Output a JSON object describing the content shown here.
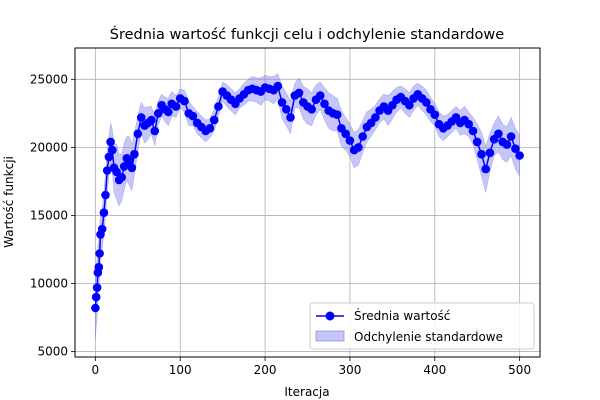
{
  "chart_data": {
    "type": "line",
    "title": "Średnia wartość funkcji celu i odchylenie standardowe",
    "xlabel": "Iteracja",
    "ylabel": "Wartość funkcji",
    "xlim": [
      -24,
      524
    ],
    "ylim": [
      4600,
      27300
    ],
    "xticks": [
      0,
      100,
      200,
      300,
      400,
      500
    ],
    "yticks": [
      5000,
      10000,
      15000,
      20000,
      25000
    ],
    "grid": true,
    "legend_position": "lower-right",
    "colors": {
      "line": "#0000ff",
      "band": "#7777ee"
    },
    "series": [
      {
        "name": "Średnia wartość",
        "x": [
          0,
          1,
          2,
          3,
          4,
          5,
          6,
          8,
          10,
          12,
          14,
          16,
          18,
          20,
          22,
          25,
          28,
          31,
          34,
          37,
          40,
          43,
          46,
          50,
          54,
          58,
          62,
          66,
          70,
          74,
          78,
          82,
          86,
          90,
          95,
          100,
          105,
          110,
          115,
          120,
          125,
          130,
          135,
          140,
          145,
          150,
          155,
          160,
          165,
          170,
          175,
          180,
          185,
          190,
          195,
          200,
          205,
          210,
          215,
          220,
          225,
          230,
          235,
          240,
          245,
          250,
          255,
          260,
          265,
          270,
          275,
          280,
          285,
          290,
          295,
          300,
          305,
          310,
          315,
          320,
          325,
          330,
          335,
          340,
          345,
          350,
          355,
          360,
          365,
          370,
          375,
          380,
          385,
          390,
          395,
          400,
          405,
          410,
          415,
          420,
          425,
          430,
          435,
          440,
          445,
          450,
          455,
          460,
          465,
          470,
          475,
          480,
          485,
          490,
          495,
          500
        ],
        "y": [
          8200,
          9000,
          9700,
          10800,
          11200,
          12200,
          13600,
          14000,
          15200,
          16500,
          18300,
          19300,
          20400,
          19800,
          18500,
          18200,
          17600,
          17800,
          18600,
          19200,
          19000,
          18500,
          19500,
          21000,
          22200,
          21600,
          21800,
          22000,
          21200,
          22500,
          23100,
          22800,
          22600,
          23200,
          23000,
          23600,
          23400,
          22500,
          22300,
          21800,
          21500,
          21200,
          21400,
          22000,
          23000,
          24100,
          23800,
          23500,
          23200,
          23600,
          23900,
          24200,
          24300,
          24200,
          24100,
          24400,
          24300,
          24200,
          24500,
          23300,
          22800,
          22200,
          23800,
          24000,
          23300,
          23000,
          22800,
          23500,
          23800,
          23200,
          22700,
          22500,
          22400,
          21400,
          21000,
          20500,
          19800,
          20000,
          20800,
          21500,
          21800,
          22200,
          22700,
          23000,
          22700,
          23100,
          23500,
          23700,
          23400,
          23100,
          23600,
          23900,
          23600,
          23300,
          22800,
          22400,
          21700,
          21400,
          21600,
          21900,
          22200,
          21800,
          22000,
          21700,
          21200,
          20400,
          19500,
          18400,
          19600,
          20600,
          21000,
          20400,
          20200,
          20800,
          19900,
          19400
        ]
      },
      {
        "name": "Odchylenie standardowe",
        "std": [
          2300,
          2200,
          2100,
          2000,
          1900,
          1800,
          1600,
          1500,
          1500,
          1500,
          1500,
          1500,
          1400,
          1500,
          1800,
          2000,
          1900,
          1700,
          1700,
          1600,
          1800,
          1700,
          1500,
          1300,
          1100,
          1300,
          1200,
          1000,
          1100,
          900,
          800,
          900,
          1000,
          900,
          800,
          700,
          800,
          900,
          700,
          800,
          800,
          800,
          700,
          800,
          700,
          700,
          800,
          800,
          800,
          700,
          800,
          800,
          900,
          900,
          1000,
          900,
          900,
          1000,
          900,
          1200,
          1200,
          1200,
          900,
          1100,
          1200,
          1300,
          1200,
          1100,
          1000,
          1200,
          1300,
          1300,
          1200,
          1300,
          1200,
          1200,
          1300,
          1300,
          1200,
          1100,
          1000,
          900,
          900,
          900,
          1100,
          1000,
          900,
          800,
          900,
          900,
          900,
          800,
          900,
          900,
          900,
          800,
          900,
          900,
          800,
          800,
          800,
          900,
          1000,
          900,
          1000,
          1300,
          1600,
          1700,
          1400,
          1200,
          1300,
          1300,
          1300,
          1400,
          1500,
          1500
        ]
      }
    ]
  }
}
